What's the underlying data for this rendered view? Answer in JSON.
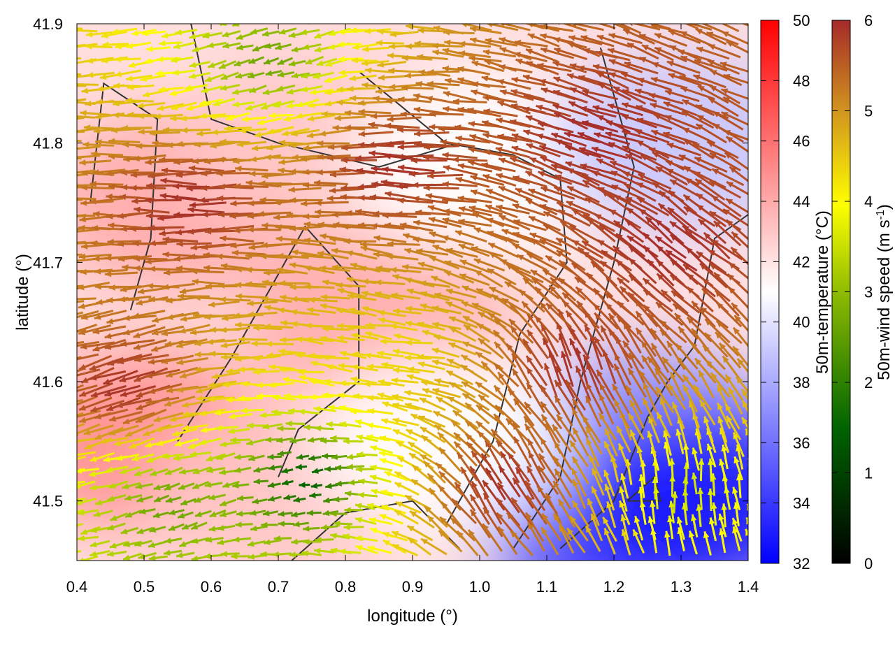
{
  "chart_data": {
    "type": "heatmap",
    "subtype": "vector-field-with-scalar-map-and-contours",
    "title": "",
    "xlabel": "longitude (°)",
    "ylabel": "latitude (°)",
    "xlim": [
      0.4,
      1.4
    ],
    "ylim": [
      41.45,
      41.9
    ],
    "x_ticks": [
      "0.4",
      "0.5",
      "0.6",
      "0.7",
      "0.8",
      "0.9",
      "1.0",
      "1.1",
      "1.2",
      "1.3",
      "1.4"
    ],
    "x_tick_values": [
      0.4,
      0.5,
      0.6,
      0.7,
      0.8,
      0.9,
      1.0,
      1.1,
      1.2,
      1.3,
      1.4
    ],
    "y_ticks": [
      "41.5",
      "41.6",
      "41.7",
      "41.8",
      "41.9"
    ],
    "y_tick_values": [
      41.5,
      41.6,
      41.7,
      41.8,
      41.9
    ],
    "temperature_colorbar": {
      "label": "50m-temperature (°C)",
      "range": [
        32,
        50
      ],
      "ticks": [
        "32",
        "34",
        "36",
        "38",
        "40",
        "42",
        "44",
        "46",
        "48",
        "50"
      ],
      "tick_values": [
        32,
        34,
        36,
        38,
        40,
        42,
        44,
        46,
        48,
        50
      ],
      "colors": [
        "#0000ff",
        "#ffffff",
        "#ff0000"
      ]
    },
    "wind_colorbar": {
      "label_main": "50m-wind speed (m s",
      "label_sup": "-1",
      "label_end": ")",
      "range": [
        0,
        6
      ],
      "ticks": [
        "0",
        "1",
        "2",
        "3",
        "4",
        "5",
        "6"
      ],
      "tick_values": [
        0,
        1,
        2,
        3,
        4,
        5,
        6
      ],
      "colors": [
        "#000000",
        "#006400",
        "#8fbc00",
        "#ffff00",
        "#d2961e",
        "#a52a2a"
      ]
    },
    "temperature_regions": [
      {
        "lon": 0.55,
        "lat": 41.75,
        "t": 44
      },
      {
        "lon": 0.5,
        "lat": 41.55,
        "t": 45
      },
      {
        "lon": 0.85,
        "lat": 41.65,
        "t": 44
      },
      {
        "lon": 0.75,
        "lat": 41.8,
        "t": 43
      },
      {
        "lon": 1.0,
        "lat": 41.78,
        "t": 41
      },
      {
        "lon": 1.3,
        "lat": 41.8,
        "t": 39
      },
      {
        "lon": 1.25,
        "lat": 41.55,
        "t": 37
      },
      {
        "lon": 1.2,
        "lat": 41.48,
        "t": 34
      },
      {
        "lon": 1.35,
        "lat": 41.5,
        "t": 33
      },
      {
        "lon": 0.7,
        "lat": 41.5,
        "t": 43
      },
      {
        "lon": 0.95,
        "lat": 41.55,
        "t": 41
      }
    ],
    "wind_regions": [
      {
        "lon": 0.6,
        "lat": 41.75,
        "dir": 180,
        "speed": 6
      },
      {
        "lon": 0.9,
        "lat": 41.78,
        "dir": 180,
        "speed": 6
      },
      {
        "lon": 1.2,
        "lat": 41.8,
        "dir": 160,
        "speed": 6
      },
      {
        "lon": 0.5,
        "lat": 41.6,
        "dir": 200,
        "speed": 6
      },
      {
        "lon": 0.9,
        "lat": 41.62,
        "dir": 175,
        "speed": 4
      },
      {
        "lon": 1.15,
        "lat": 41.6,
        "dir": 110,
        "speed": 6
      },
      {
        "lon": 1.3,
        "lat": 41.7,
        "dir": 140,
        "speed": 6
      },
      {
        "lon": 0.55,
        "lat": 41.5,
        "dir": 200,
        "speed": 2
      },
      {
        "lon": 0.75,
        "lat": 41.52,
        "dir": 190,
        "speed": 1
      },
      {
        "lon": 1.3,
        "lat": 41.5,
        "dir": 90,
        "speed": 3
      },
      {
        "lon": 1.05,
        "lat": 41.5,
        "dir": 120,
        "speed": 6
      },
      {
        "lon": 0.7,
        "lat": 41.87,
        "dir": 200,
        "speed": 2
      }
    ],
    "contours": [
      [
        [
          0.42,
          41.75
        ],
        [
          0.44,
          41.85
        ],
        [
          0.52,
          41.82
        ],
        [
          0.51,
          41.72
        ],
        [
          0.48,
          41.66
        ]
      ],
      [
        [
          0.57,
          41.9
        ],
        [
          0.6,
          41.82
        ],
        [
          0.7,
          41.8
        ],
        [
          0.85,
          41.78
        ],
        [
          0.97,
          41.8
        ]
      ],
      [
        [
          0.55,
          41.55
        ],
        [
          0.63,
          41.62
        ],
        [
          0.74,
          41.73
        ],
        [
          0.82,
          41.68
        ],
        [
          0.82,
          41.6
        ],
        [
          0.73,
          41.56
        ],
        [
          0.7,
          41.52
        ]
      ],
      [
        [
          0.82,
          41.86
        ],
        [
          0.95,
          41.8
        ],
        [
          1.05,
          41.79
        ],
        [
          1.12,
          41.77
        ],
        [
          1.13,
          41.7
        ],
        [
          1.06,
          41.64
        ],
        [
          1.02,
          41.55
        ],
        [
          0.95,
          41.48
        ]
      ],
      [
        [
          1.18,
          41.88
        ],
        [
          1.23,
          41.78
        ],
        [
          1.2,
          41.7
        ],
        [
          1.15,
          41.6
        ],
        [
          1.12,
          41.52
        ],
        [
          1.05,
          41.46
        ]
      ],
      [
        [
          1.4,
          41.74
        ],
        [
          1.35,
          41.72
        ],
        [
          1.32,
          41.63
        ],
        [
          1.28,
          41.6
        ],
        [
          1.25,
          41.57
        ],
        [
          1.2,
          41.5
        ],
        [
          1.12,
          41.46
        ]
      ],
      [
        [
          0.72,
          41.45
        ],
        [
          0.8,
          41.49
        ],
        [
          0.9,
          41.5
        ],
        [
          0.97,
          41.46
        ]
      ],
      [
        [
          1.22,
          41.5
        ],
        [
          1.26,
          41.52
        ],
        [
          1.27,
          41.5
        ],
        [
          1.22,
          41.5
        ]
      ]
    ]
  }
}
